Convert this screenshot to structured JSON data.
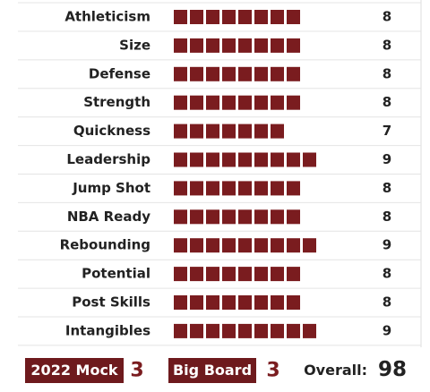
{
  "ratings": [
    {
      "label": "Athleticism",
      "value": 8
    },
    {
      "label": "Size",
      "value": 8
    },
    {
      "label": "Defense",
      "value": 8
    },
    {
      "label": "Strength",
      "value": 8
    },
    {
      "label": "Quickness",
      "value": 7
    },
    {
      "label": "Leadership",
      "value": 9
    },
    {
      "label": "Jump Shot",
      "value": 8
    },
    {
      "label": "NBA Ready",
      "value": 8
    },
    {
      "label": "Rebounding",
      "value": 9
    },
    {
      "label": "Potential",
      "value": 8
    },
    {
      "label": "Post Skills",
      "value": 8
    },
    {
      "label": "Intangibles",
      "value": 9
    }
  ],
  "footer": {
    "mock_label": "2022 Mock",
    "mock_value": 3,
    "board_label": "Big Board",
    "board_value": 3,
    "overall_label": "Overall:",
    "overall_value": 98
  }
}
